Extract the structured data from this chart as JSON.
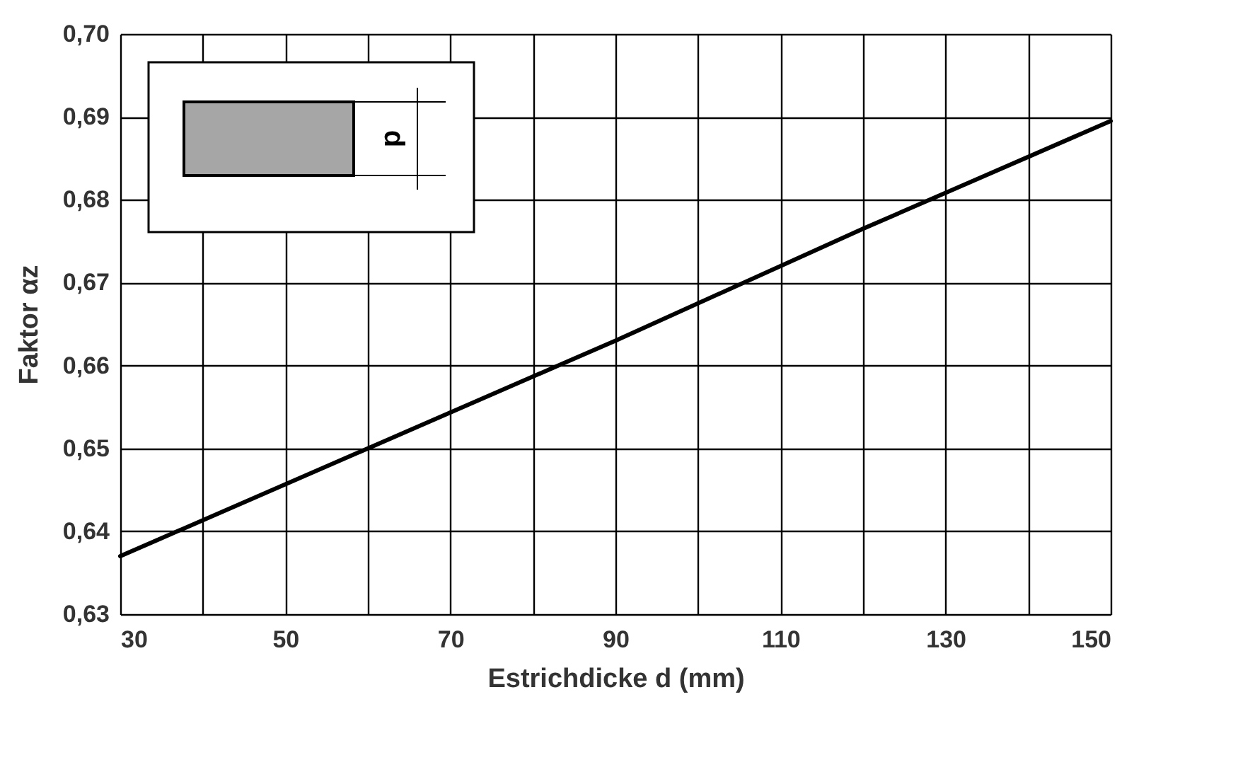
{
  "chart_data": {
    "type": "line",
    "xlabel": "Estrichdicke  d (mm)",
    "ylabel": "Faktor  αz",
    "x": [
      30,
      60,
      90,
      120,
      150
    ],
    "series": [
      {
        "color": "#000000",
        "values": [
          0.637,
          0.65,
          0.663,
          0.6765,
          0.6895
        ]
      }
    ],
    "xlim": [
      30,
      150
    ],
    "ylim": [
      0.63,
      0.7
    ],
    "xticks": [
      30,
      {
        "value": 40,
        "label": null
      },
      50,
      {
        "value": 60,
        "label": null
      },
      70,
      {
        "value": 80,
        "label": null
      },
      90,
      {
        "value": 100,
        "label": null
      },
      110,
      {
        "value": 120,
        "label": null
      },
      130,
      {
        "value": 140,
        "label": null
      },
      150
    ],
    "yticks": [
      {
        "value": 0.63,
        "label": "0,63"
      },
      {
        "value": 0.64,
        "label": "0,64"
      },
      {
        "value": 0.65,
        "label": "0,65"
      },
      {
        "value": 0.66,
        "label": "0,66"
      },
      {
        "value": 0.67,
        "label": "0,67"
      },
      {
        "value": 0.68,
        "label": "0,68"
      },
      {
        "value": 0.69,
        "label": "0,69"
      },
      {
        "value": 0.7,
        "label": "0,70"
      }
    ],
    "grid": true,
    "marker": "none",
    "line_style": "solid",
    "legend": false,
    "annotations": [
      "d"
    ]
  }
}
